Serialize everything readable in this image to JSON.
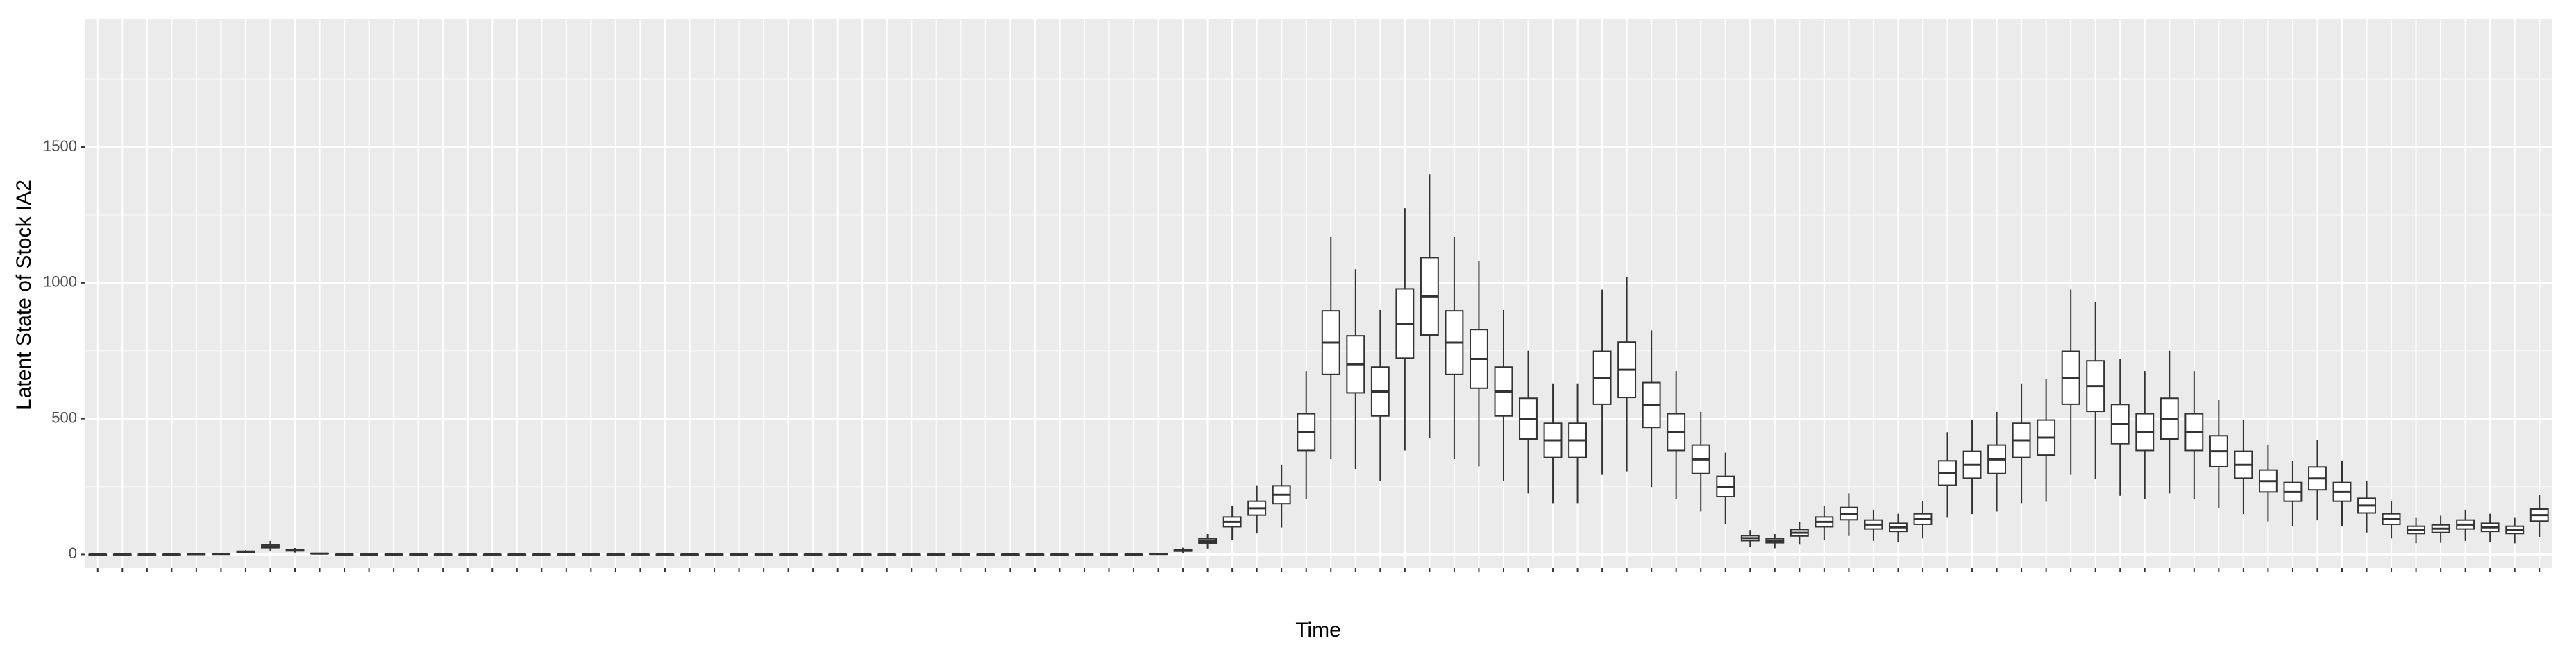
{
  "chart_data": {
    "type": "boxplot",
    "y_label": "Latent State of Stock IA2",
    "x_label": "Time",
    "ylim": [
      -50,
      1970
    ],
    "yticks": [
      0,
      500,
      1000,
      1500
    ],
    "grid": true,
    "color": "#333333",
    "box_fill": "#ffffff",
    "background": "#ebebeb",
    "categories": [
      null,
      null,
      null,
      null,
      null,
      null,
      null,
      null,
      null,
      null,
      null,
      null,
      null,
      null,
      null,
      null,
      null,
      null,
      null,
      null,
      null,
      null,
      null,
      null,
      null,
      null,
      null,
      null,
      null,
      null,
      null,
      null,
      null,
      null,
      null,
      null,
      null,
      null,
      null,
      null,
      null,
      null,
      null,
      null,
      null,
      null,
      null,
      null,
      null,
      null,
      null,
      null,
      null,
      null,
      null,
      null,
      null,
      null,
      null,
      null,
      null,
      null,
      null,
      null,
      null,
      null,
      null,
      null,
      null,
      null,
      null,
      null,
      null,
      null,
      null,
      null,
      null,
      null,
      null,
      null,
      null,
      null,
      null,
      null,
      null,
      null,
      null,
      null,
      null,
      null,
      null,
      null,
      null,
      null,
      null,
      null,
      null,
      null,
      null,
      null
    ],
    "values": [
      [
        0,
        0,
        0,
        0,
        0
      ],
      [
        0,
        0,
        0,
        0,
        0
      ],
      [
        0,
        0,
        0,
        0,
        0
      ],
      [
        0,
        0,
        0,
        0,
        0
      ],
      [
        0,
        1,
        1,
        1,
        2
      ],
      [
        1,
        2,
        2,
        2,
        3
      ],
      [
        5,
        8,
        10,
        12,
        16
      ],
      [
        14,
        25,
        30,
        36,
        50
      ],
      [
        7,
        13,
        15,
        17,
        24
      ],
      [
        1,
        3,
        3,
        4,
        5
      ],
      [
        0,
        0,
        0,
        0,
        0
      ],
      [
        0,
        0,
        0,
        0,
        0
      ],
      [
        0,
        0,
        0,
        0,
        0
      ],
      [
        0,
        0,
        0,
        0,
        0
      ],
      [
        0,
        0,
        0,
        0,
        0
      ],
      [
        0,
        0,
        0,
        0,
        0
      ],
      [
        0,
        0,
        0,
        0,
        0
      ],
      [
        0,
        0,
        0,
        0,
        0
      ],
      [
        0,
        0,
        0,
        0,
        0
      ],
      [
        0,
        0,
        0,
        0,
        0
      ],
      [
        0,
        0,
        0,
        0,
        0
      ],
      [
        0,
        0,
        0,
        0,
        0
      ],
      [
        0,
        0,
        0,
        0,
        0
      ],
      [
        0,
        0,
        0,
        0,
        0
      ],
      [
        0,
        0,
        0,
        0,
        0
      ],
      [
        0,
        0,
        0,
        0,
        0
      ],
      [
        0,
        0,
        0,
        0,
        0
      ],
      [
        0,
        0,
        0,
        0,
        0
      ],
      [
        0,
        0,
        0,
        0,
        0
      ],
      [
        0,
        0,
        0,
        0,
        0
      ],
      [
        0,
        0,
        0,
        0,
        0
      ],
      [
        0,
        0,
        0,
        0,
        0
      ],
      [
        0,
        0,
        0,
        0,
        0
      ],
      [
        0,
        0,
        0,
        0,
        0
      ],
      [
        0,
        0,
        0,
        0,
        0
      ],
      [
        0,
        0,
        0,
        0,
        0
      ],
      [
        0,
        0,
        0,
        0,
        0
      ],
      [
        0,
        0,
        0,
        0,
        0
      ],
      [
        0,
        0,
        0,
        0,
        0
      ],
      [
        0,
        0,
        0,
        0,
        0
      ],
      [
        0,
        0,
        0,
        0,
        0
      ],
      [
        0,
        0,
        0,
        0,
        0
      ],
      [
        0,
        0,
        0,
        0,
        0
      ],
      [
        1,
        2,
        2,
        2,
        3
      ],
      [
        6,
        12,
        15,
        18,
        25
      ],
      [
        22,
        42,
        50,
        58,
        75
      ],
      [
        54,
        102,
        120,
        138,
        180
      ],
      [
        77,
        145,
        170,
        196,
        255
      ],
      [
        99,
        187,
        220,
        253,
        330
      ],
      [
        203,
        383,
        450,
        518,
        675
      ],
      [
        351,
        663,
        780,
        897,
        1170
      ],
      [
        315,
        595,
        700,
        805,
        1050
      ],
      [
        270,
        510,
        600,
        690,
        900
      ],
      [
        383,
        723,
        850,
        978,
        1275
      ],
      [
        428,
        808,
        950,
        1093,
        1400
      ],
      [
        351,
        663,
        780,
        897,
        1170
      ],
      [
        324,
        612,
        720,
        828,
        1080
      ],
      [
        270,
        510,
        600,
        690,
        900
      ],
      [
        225,
        425,
        500,
        575,
        750
      ],
      [
        189,
        357,
        420,
        483,
        630
      ],
      [
        189,
        357,
        420,
        483,
        630
      ],
      [
        293,
        553,
        650,
        748,
        975
      ],
      [
        306,
        578,
        680,
        782,
        1020
      ],
      [
        248,
        468,
        550,
        633,
        825
      ],
      [
        203,
        383,
        450,
        518,
        675
      ],
      [
        158,
        298,
        350,
        403,
        525
      ],
      [
        113,
        213,
        250,
        288,
        375
      ],
      [
        27,
        51,
        60,
        69,
        90
      ],
      [
        23,
        43,
        50,
        58,
        75
      ],
      [
        36,
        68,
        80,
        92,
        120
      ],
      [
        54,
        102,
        120,
        138,
        180
      ],
      [
        68,
        128,
        150,
        173,
        225
      ],
      [
        50,
        94,
        110,
        127,
        165
      ],
      [
        45,
        85,
        100,
        115,
        150
      ],
      [
        59,
        111,
        130,
        150,
        195
      ],
      [
        135,
        255,
        300,
        345,
        450
      ],
      [
        149,
        281,
        330,
        380,
        495
      ],
      [
        158,
        298,
        350,
        403,
        525
      ],
      [
        189,
        357,
        420,
        483,
        630
      ],
      [
        194,
        366,
        430,
        495,
        645
      ],
      [
        293,
        553,
        650,
        748,
        975
      ],
      [
        279,
        527,
        620,
        713,
        930
      ],
      [
        216,
        408,
        480,
        552,
        720
      ],
      [
        203,
        383,
        450,
        518,
        675
      ],
      [
        225,
        425,
        500,
        575,
        750
      ],
      [
        203,
        383,
        450,
        518,
        675
      ],
      [
        171,
        323,
        380,
        437,
        570
      ],
      [
        149,
        281,
        330,
        380,
        495
      ],
      [
        122,
        230,
        270,
        311,
        405
      ],
      [
        104,
        196,
        230,
        265,
        345
      ],
      [
        126,
        238,
        280,
        322,
        420
      ],
      [
        104,
        196,
        230,
        265,
        345
      ],
      [
        81,
        153,
        180,
        207,
        270
      ],
      [
        59,
        111,
        130,
        150,
        195
      ],
      [
        41,
        77,
        90,
        104,
        135
      ],
      [
        43,
        81,
        95,
        109,
        143
      ],
      [
        50,
        94,
        110,
        127,
        165
      ],
      [
        45,
        85,
        100,
        115,
        150
      ],
      [
        41,
        77,
        90,
        104,
        135
      ],
      [
        65,
        123,
        145,
        167,
        218
      ]
    ]
  }
}
